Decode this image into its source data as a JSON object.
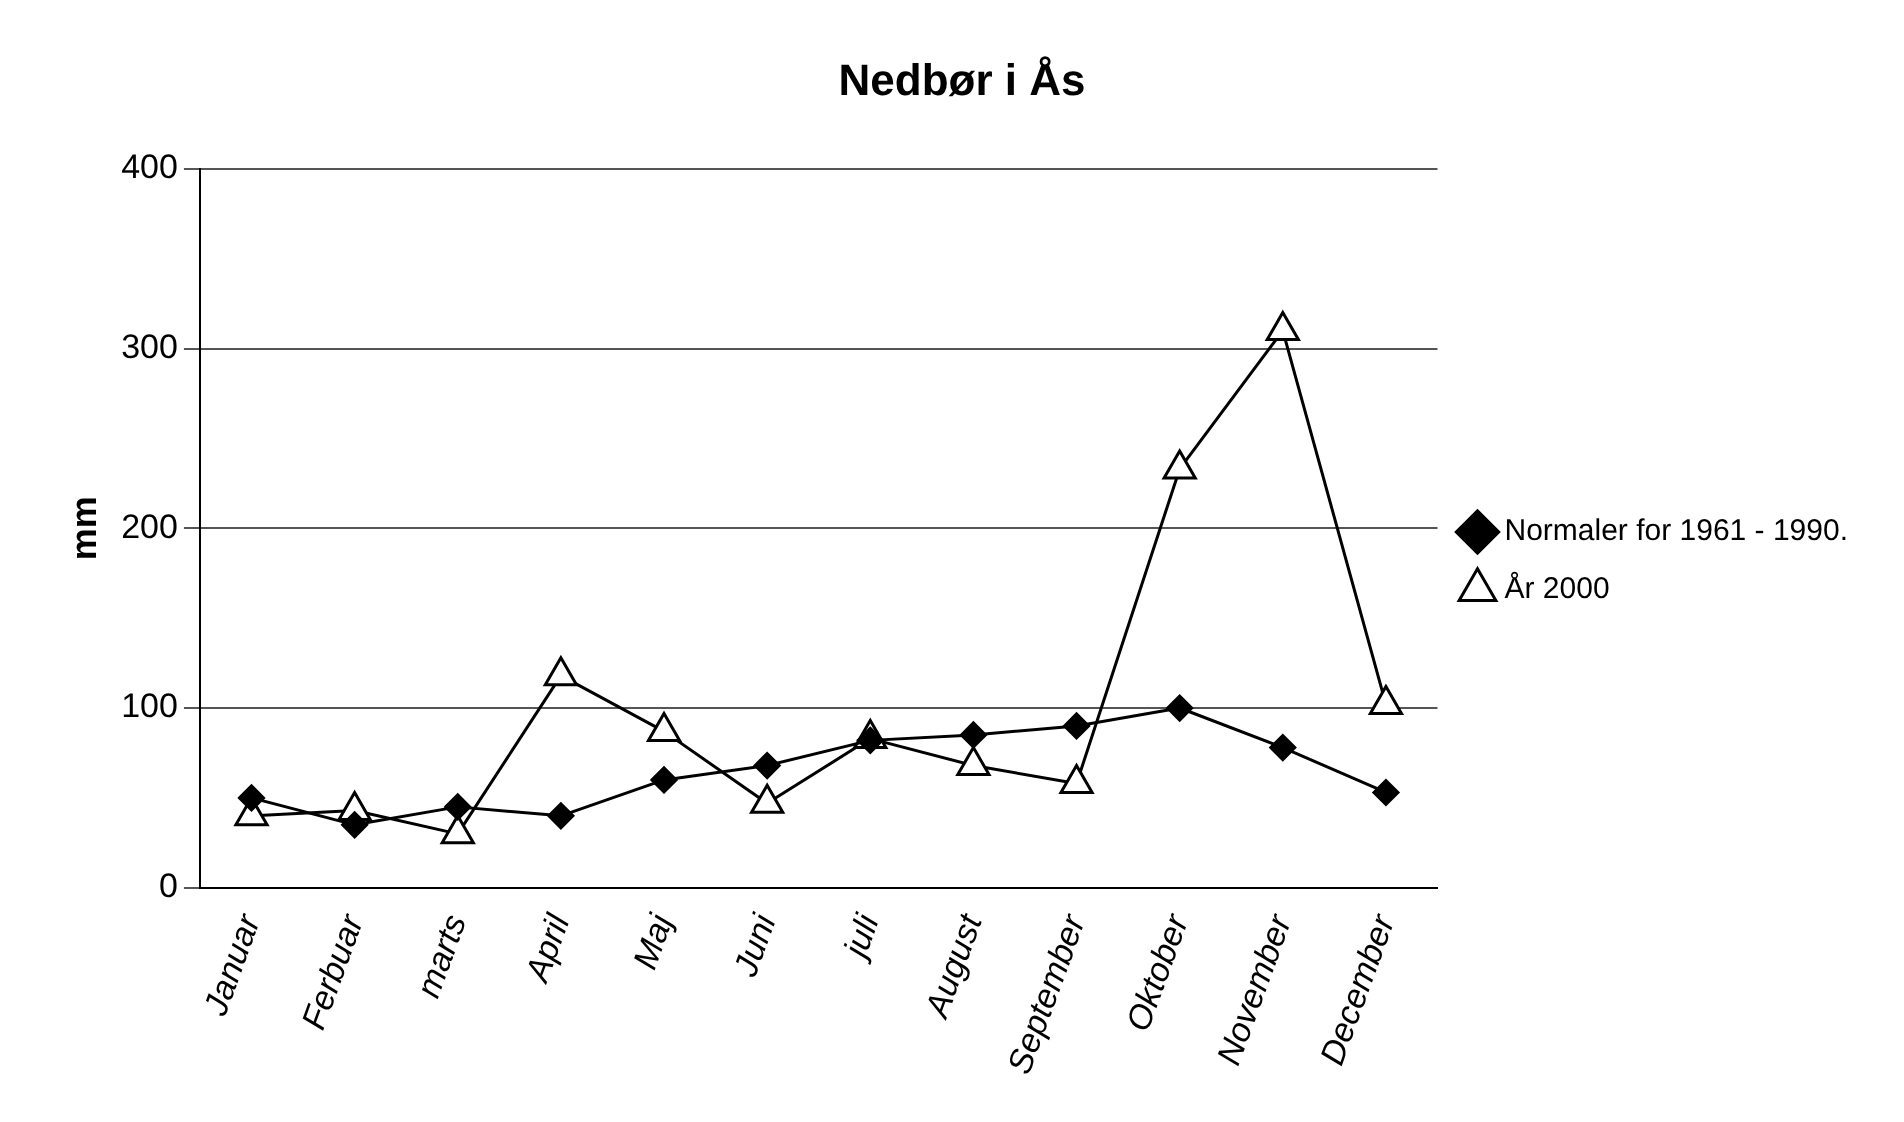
{
  "chart_data": {
    "type": "line",
    "title": "Nedbør i Ås",
    "ylabel": "mm",
    "categories": [
      "Januar",
      "Ferbuar",
      "marts",
      "April",
      "Maj",
      "Juni",
      "juli",
      "August",
      "September",
      "Oktober",
      "November",
      "December"
    ],
    "series": [
      {
        "name": "Normaler for 1961 - 1990.",
        "color": "#000000",
        "marker": "diamond",
        "values": [
          50,
          35,
          45,
          40,
          60,
          68,
          82,
          85,
          90,
          100,
          78,
          53
        ]
      },
      {
        "name": "År 2000",
        "color": "#000000",
        "marker": "triangle",
        "values": [
          40,
          43,
          30,
          118,
          87,
          47,
          83,
          68,
          58,
          233,
          310,
          102
        ]
      }
    ],
    "ylim": [
      0,
      400
    ],
    "yticks": [
      0,
      100,
      200,
      300,
      400
    ],
    "grid": "y",
    "legend": "right",
    "line_style": "solid"
  }
}
